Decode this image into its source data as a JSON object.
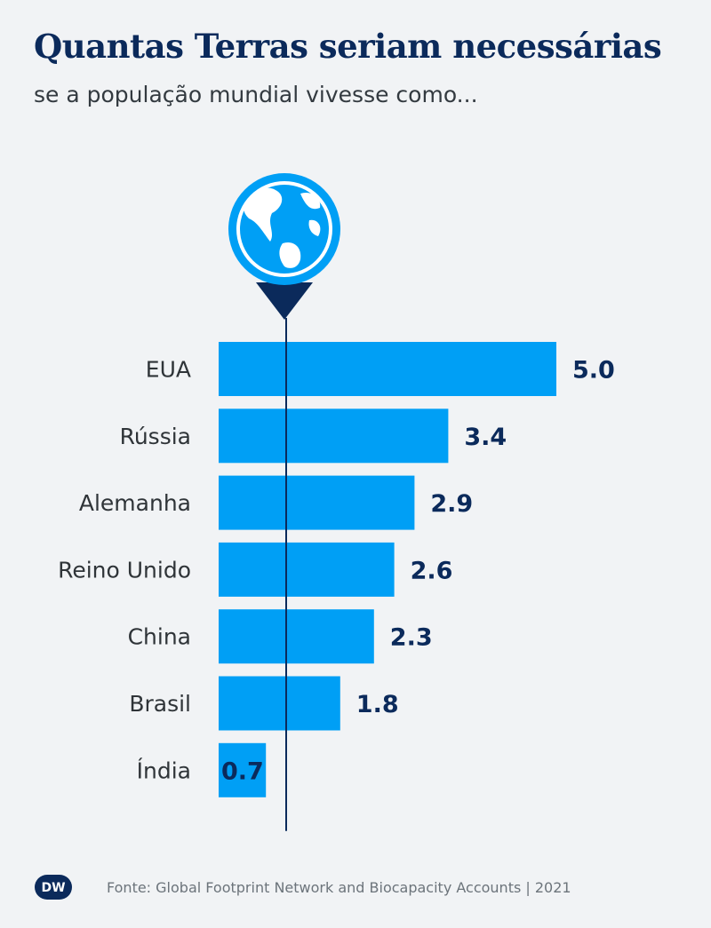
{
  "title": "Quantas Terras seriam necessárias",
  "subtitle": "se a população mundial vivesse como...",
  "source": "Fonte: Global Footprint Network and Biocapacity Accounts | 2021",
  "logo_text": "DW",
  "colors": {
    "bar": "#009ff5",
    "axis": "#0b2a5b",
    "title": "#0b2a5b",
    "background": "#f1f3f5"
  },
  "icons": {
    "pin": "globe-pin-icon",
    "logo": "dw-logo-icon"
  },
  "chart_data": {
    "type": "bar",
    "orientation": "horizontal",
    "categories": [
      "EUA",
      "Rússia",
      "Alemanha",
      "Reino Unido",
      "China",
      "Brasil",
      "Índia"
    ],
    "values": [
      5.0,
      3.4,
      2.9,
      2.6,
      2.3,
      1.8,
      0.7
    ],
    "value_labels": [
      "5.0",
      "3.4",
      "2.9",
      "2.6",
      "2.3",
      "1.8",
      "0.7"
    ],
    "reference_value": 1,
    "xlim": [
      0,
      5
    ],
    "grid": false,
    "legend": "none"
  }
}
